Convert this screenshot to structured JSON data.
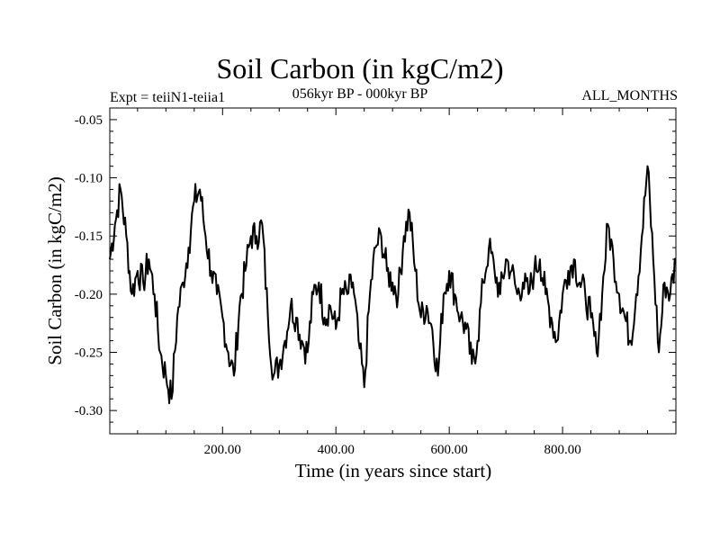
{
  "chart_data": {
    "type": "line",
    "title": "Soil Carbon (in kgC/m2)",
    "subtitle_left": "Expt = teiiN1-teiia1",
    "subtitle_center": "056kyr BP - 000kyr BP",
    "subtitle_right": "ALL_MONTHS",
    "xlabel": "Time (in years since start)",
    "ylabel": "Soil Carbon (in kgC/m2)",
    "xlim": [
      1,
      1000
    ],
    "ylim": [
      -0.32,
      -0.04
    ],
    "x_ticks": [
      200,
      400,
      600,
      800
    ],
    "x_tick_labels": [
      "200.00",
      "400.00",
      "600.00",
      "800.00"
    ],
    "y_ticks": [
      -0.05,
      -0.1,
      -0.15,
      -0.2,
      -0.25,
      -0.3
    ],
    "y_tick_labels": [
      "-0.05",
      "-0.10",
      "-0.15",
      "-0.20",
      "-0.25",
      "-0.30"
    ],
    "grid": false,
    "line_color": "#000000",
    "series": [
      {
        "x": [
          1,
          10,
          20,
          30,
          40,
          50,
          60,
          70,
          80,
          90,
          100,
          110,
          120,
          130,
          140,
          150,
          160,
          170,
          180,
          190,
          200,
          210,
          220,
          230,
          240,
          250,
          260,
          270,
          280,
          290,
          300,
          310,
          320,
          330,
          340,
          350,
          360,
          370,
          380,
          390,
          400,
          410,
          420,
          430,
          440,
          450,
          460,
          470,
          480,
          490,
          500,
          510,
          520,
          530,
          540,
          550,
          560,
          570,
          580,
          590,
          600,
          610,
          620,
          630,
          640,
          650,
          660,
          670,
          680,
          690,
          700,
          710,
          720,
          730,
          740,
          750,
          760,
          770,
          780,
          790,
          800,
          810,
          820,
          830,
          840,
          850,
          860,
          870,
          880,
          890,
          900,
          910,
          920,
          930,
          940,
          950,
          960,
          970,
          980,
          990,
          1000
        ],
        "values": [
          -0.17,
          -0.14,
          -0.11,
          -0.15,
          -0.2,
          -0.18,
          -0.19,
          -0.17,
          -0.2,
          -0.25,
          -0.27,
          -0.29,
          -0.22,
          -0.19,
          -0.16,
          -0.12,
          -0.11,
          -0.15,
          -0.18,
          -0.2,
          -0.22,
          -0.25,
          -0.27,
          -0.21,
          -0.18,
          -0.15,
          -0.15,
          -0.14,
          -0.22,
          -0.27,
          -0.26,
          -0.24,
          -0.21,
          -0.22,
          -0.24,
          -0.25,
          -0.2,
          -0.19,
          -0.22,
          -0.21,
          -0.23,
          -0.2,
          -0.2,
          -0.19,
          -0.24,
          -0.28,
          -0.2,
          -0.16,
          -0.15,
          -0.18,
          -0.19,
          -0.2,
          -0.15,
          -0.13,
          -0.18,
          -0.22,
          -0.21,
          -0.23,
          -0.27,
          -0.2,
          -0.18,
          -0.2,
          -0.22,
          -0.23,
          -0.26,
          -0.24,
          -0.19,
          -0.16,
          -0.18,
          -0.2,
          -0.17,
          -0.18,
          -0.2,
          -0.19,
          -0.2,
          -0.18,
          -0.17,
          -0.2,
          -0.22,
          -0.24,
          -0.2,
          -0.18,
          -0.17,
          -0.19,
          -0.2,
          -0.22,
          -0.25,
          -0.2,
          -0.14,
          -0.17,
          -0.2,
          -0.22,
          -0.24,
          -0.2,
          -0.15,
          -0.09,
          -0.17,
          -0.25,
          -0.19,
          -0.2,
          -0.17
        ]
      }
    ]
  }
}
